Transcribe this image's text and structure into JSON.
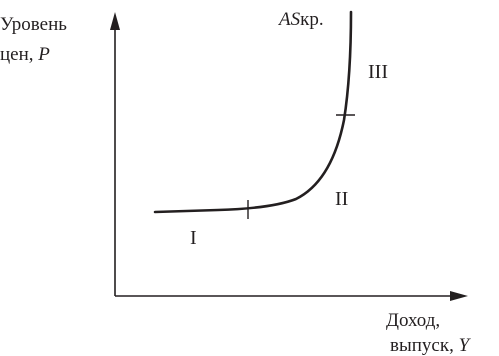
{
  "y_axis_label": {
    "line1": "Уровень",
    "line2_text": "цен, ",
    "line2_symbol": "P"
  },
  "x_axis_label": {
    "line1": "Доход,",
    "line2_text": "выпуск, ",
    "line2_symbol": "Y"
  },
  "curve_label": {
    "symbol": "AS",
    "suffix": "кр."
  },
  "segments": {
    "first": "I",
    "second": "II",
    "third": "III"
  },
  "colors": {
    "ink": "#231f20",
    "background": "#ffffff"
  }
}
